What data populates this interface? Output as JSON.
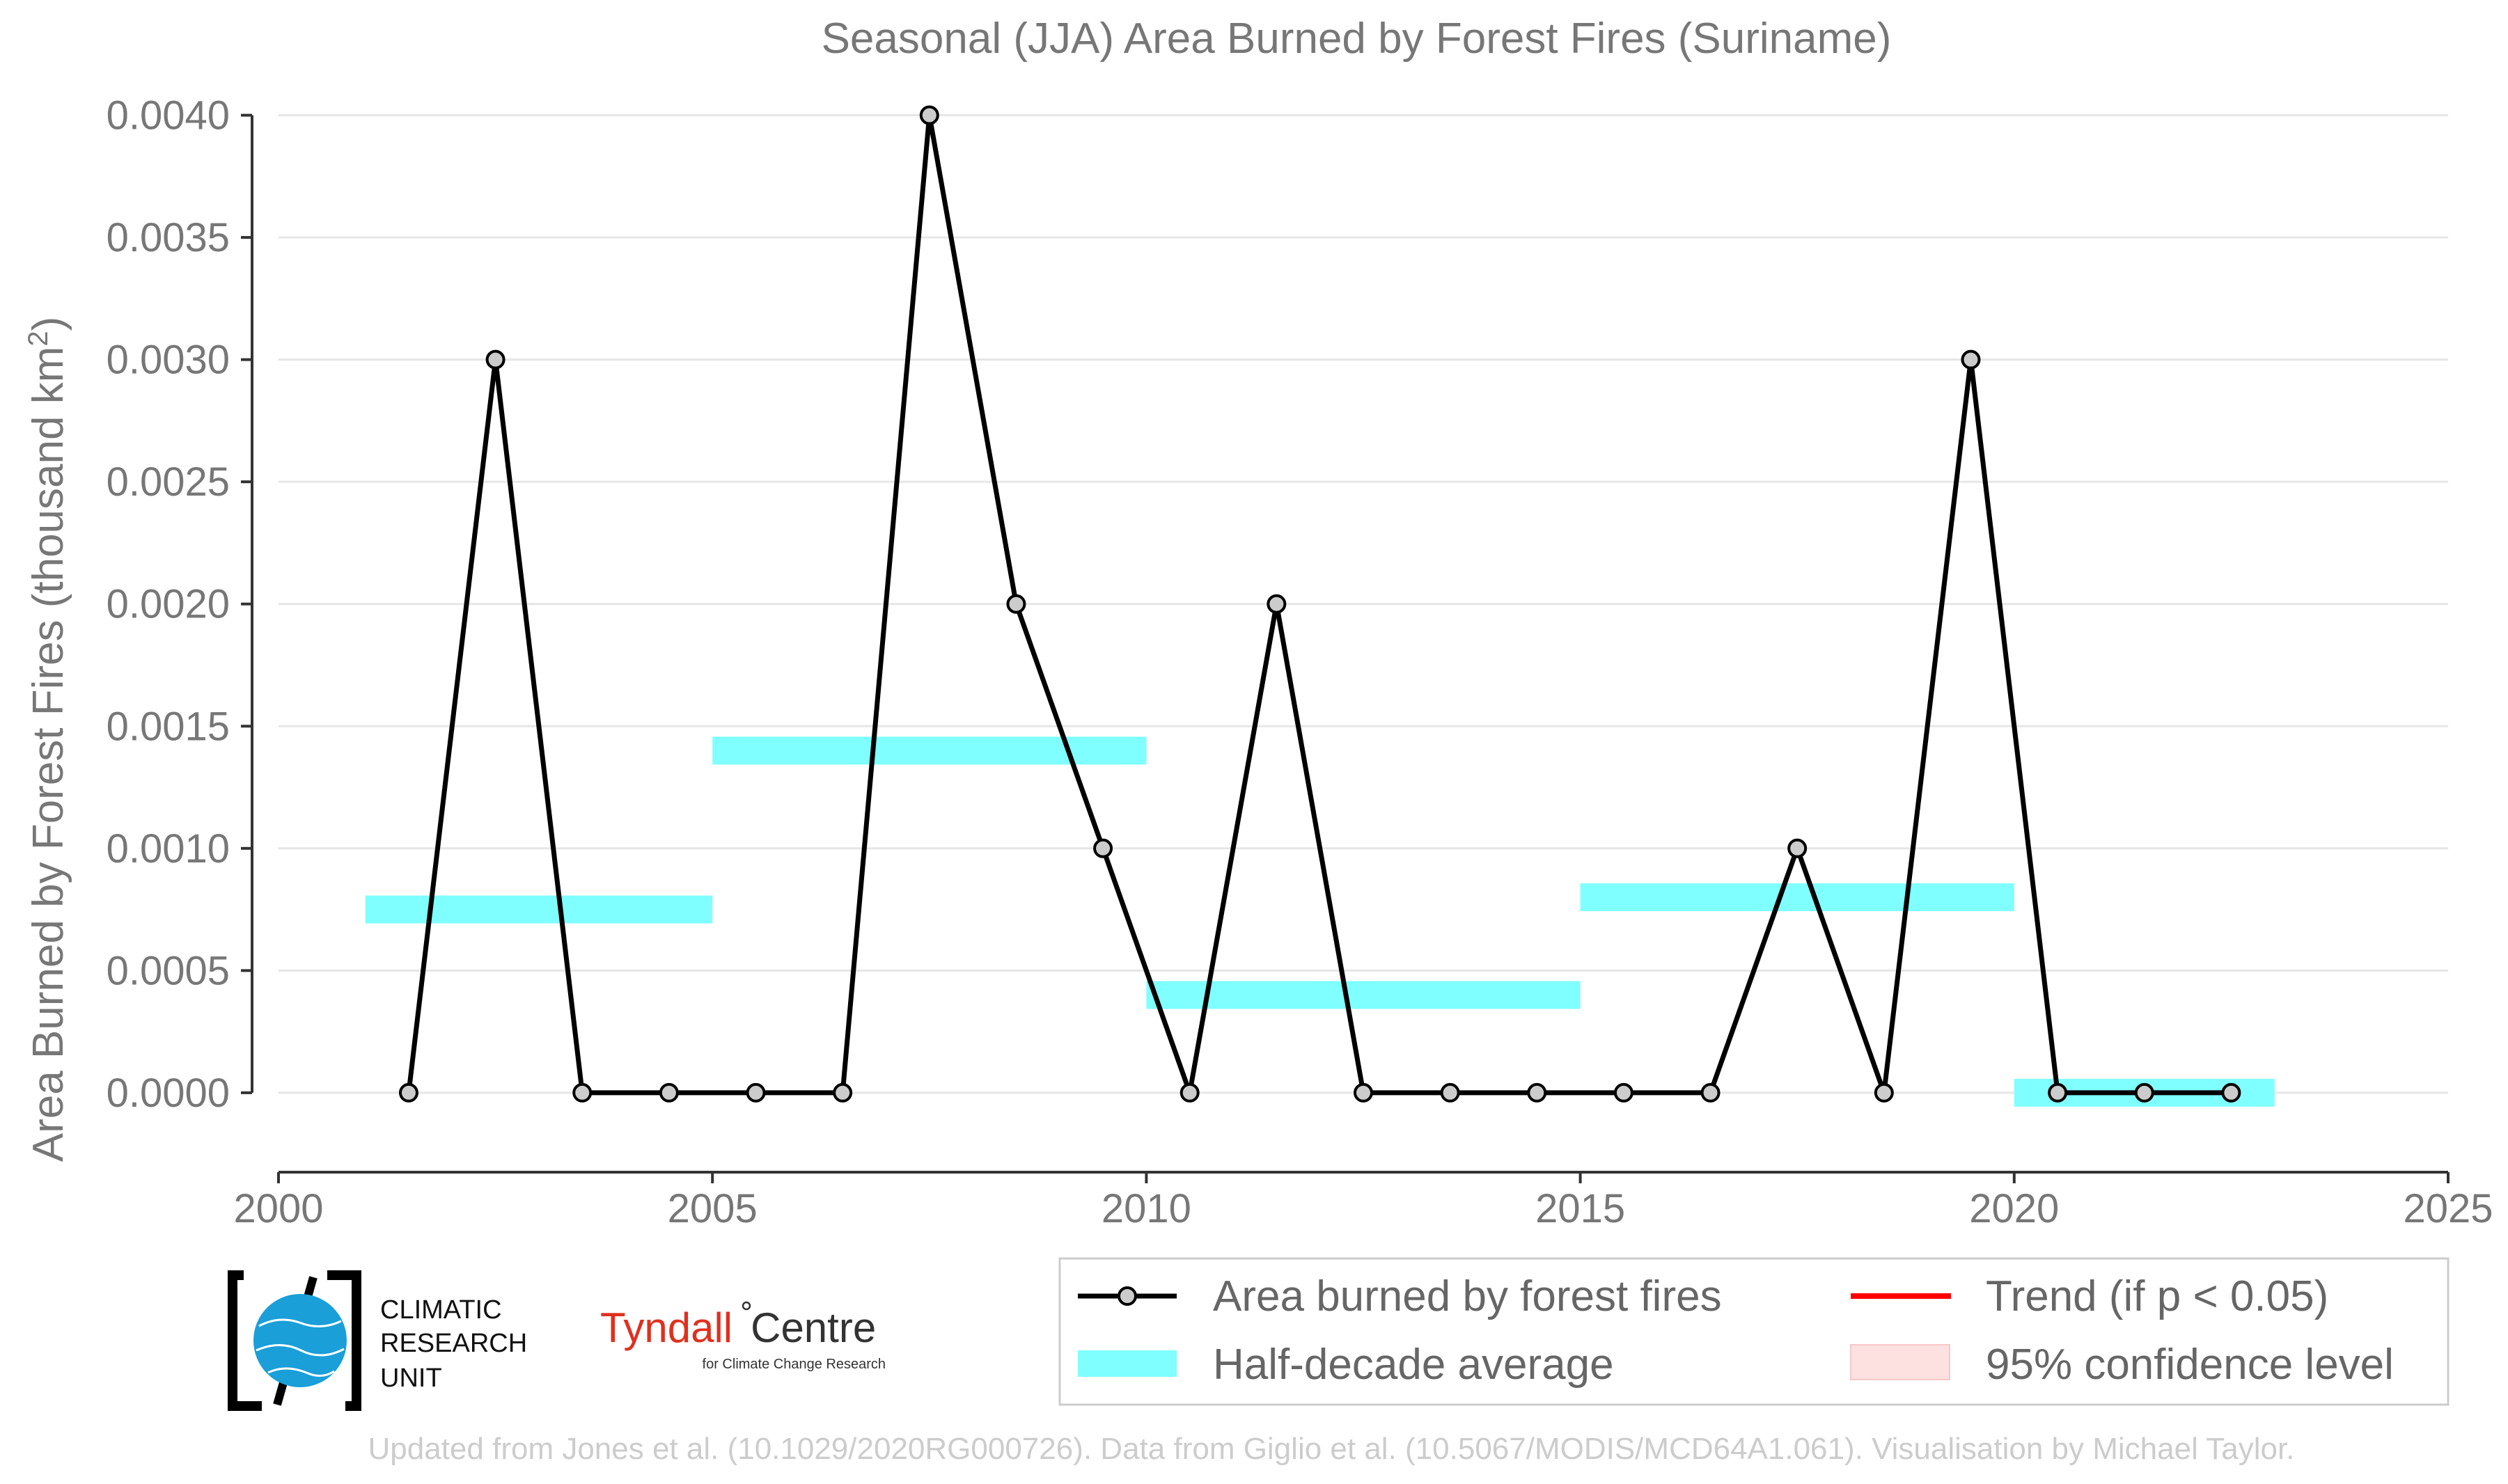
{
  "chart_data": {
    "type": "line",
    "title": "Seasonal (JJA) Area Burned by Forest Fires (Suriname)",
    "ylabel": "Area Burned by Forest Fires (thousand km",
    "ylabel_sup": "2",
    "ylabel_close": ")",
    "xlim": [
      2000,
      2025
    ],
    "ylim": [
      -0.000325,
      0.00405
    ],
    "xticks": [
      2000,
      2005,
      2010,
      2015,
      2020,
      2025
    ],
    "yticks": [
      0.0,
      0.0005,
      0.001,
      0.0015,
      0.002,
      0.0025,
      0.003,
      0.0035,
      0.004
    ],
    "ytick_labels": [
      "0.0000",
      "0.0005",
      "0.0010",
      "0.0015",
      "0.0020",
      "0.0025",
      "0.0030",
      "0.0035",
      "0.0040"
    ],
    "grid": "horizontal",
    "series": [
      {
        "name": "Area burned by forest fires",
        "color": "#000000",
        "x": [
          2001.5,
          2002.5,
          2003.5,
          2004.5,
          2005.5,
          2006.5,
          2007.5,
          2008.5,
          2009.5,
          2010.5,
          2011.5,
          2012.5,
          2013.5,
          2014.5,
          2015.5,
          2016.5,
          2017.5,
          2018.5,
          2019.5,
          2020.5,
          2021.5,
          2022.5
        ],
        "y": [
          0.0,
          0.003,
          0.0,
          0.0,
          0.0,
          0.0,
          0.004,
          0.002,
          0.001,
          0.0,
          0.002,
          0.0,
          0.0,
          0.0,
          0.0,
          0.0,
          0.001,
          0.0,
          0.003,
          0.0,
          0.0,
          0.0
        ]
      }
    ],
    "half_decade_average": {
      "name": "Half-decade average",
      "color": "#7fffff",
      "segments": [
        {
          "x0": 2001,
          "x1": 2005,
          "y": 0.00075
        },
        {
          "x0": 2005,
          "x1": 2010,
          "y": 0.0014
        },
        {
          "x0": 2010,
          "x1": 2015,
          "y": 0.0004
        },
        {
          "x0": 2015,
          "x1": 2020,
          "y": 0.0008
        },
        {
          "x0": 2020,
          "x1": 2023,
          "y": 0.0
        }
      ]
    },
    "legend": {
      "placement": "bottom-right",
      "entries": [
        {
          "label": "Area burned by forest fires",
          "kind": "line-marker",
          "color": "#000000"
        },
        {
          "label": "Trend (if p < 0.05)",
          "kind": "line",
          "color": "#ff0000"
        },
        {
          "label": "Half-decade average",
          "kind": "band",
          "color": "#7fffff"
        },
        {
          "label": "95% confidence level",
          "kind": "band",
          "color": "#fde0e0"
        }
      ]
    }
  },
  "logos": {
    "cru": [
      "CLIMATIC",
      "RESEARCH",
      "UNIT"
    ],
    "tyndall_main": "Tyndall",
    "tyndall_centre": "Centre",
    "tyndall_sub": "for Climate Change Research"
  },
  "credit": "Updated from Jones et al. (10.1029/2020RG000726). Data from Giglio et al. (10.5067/MODIS/MCD64A1.061). Visualisation by Michael Taylor."
}
